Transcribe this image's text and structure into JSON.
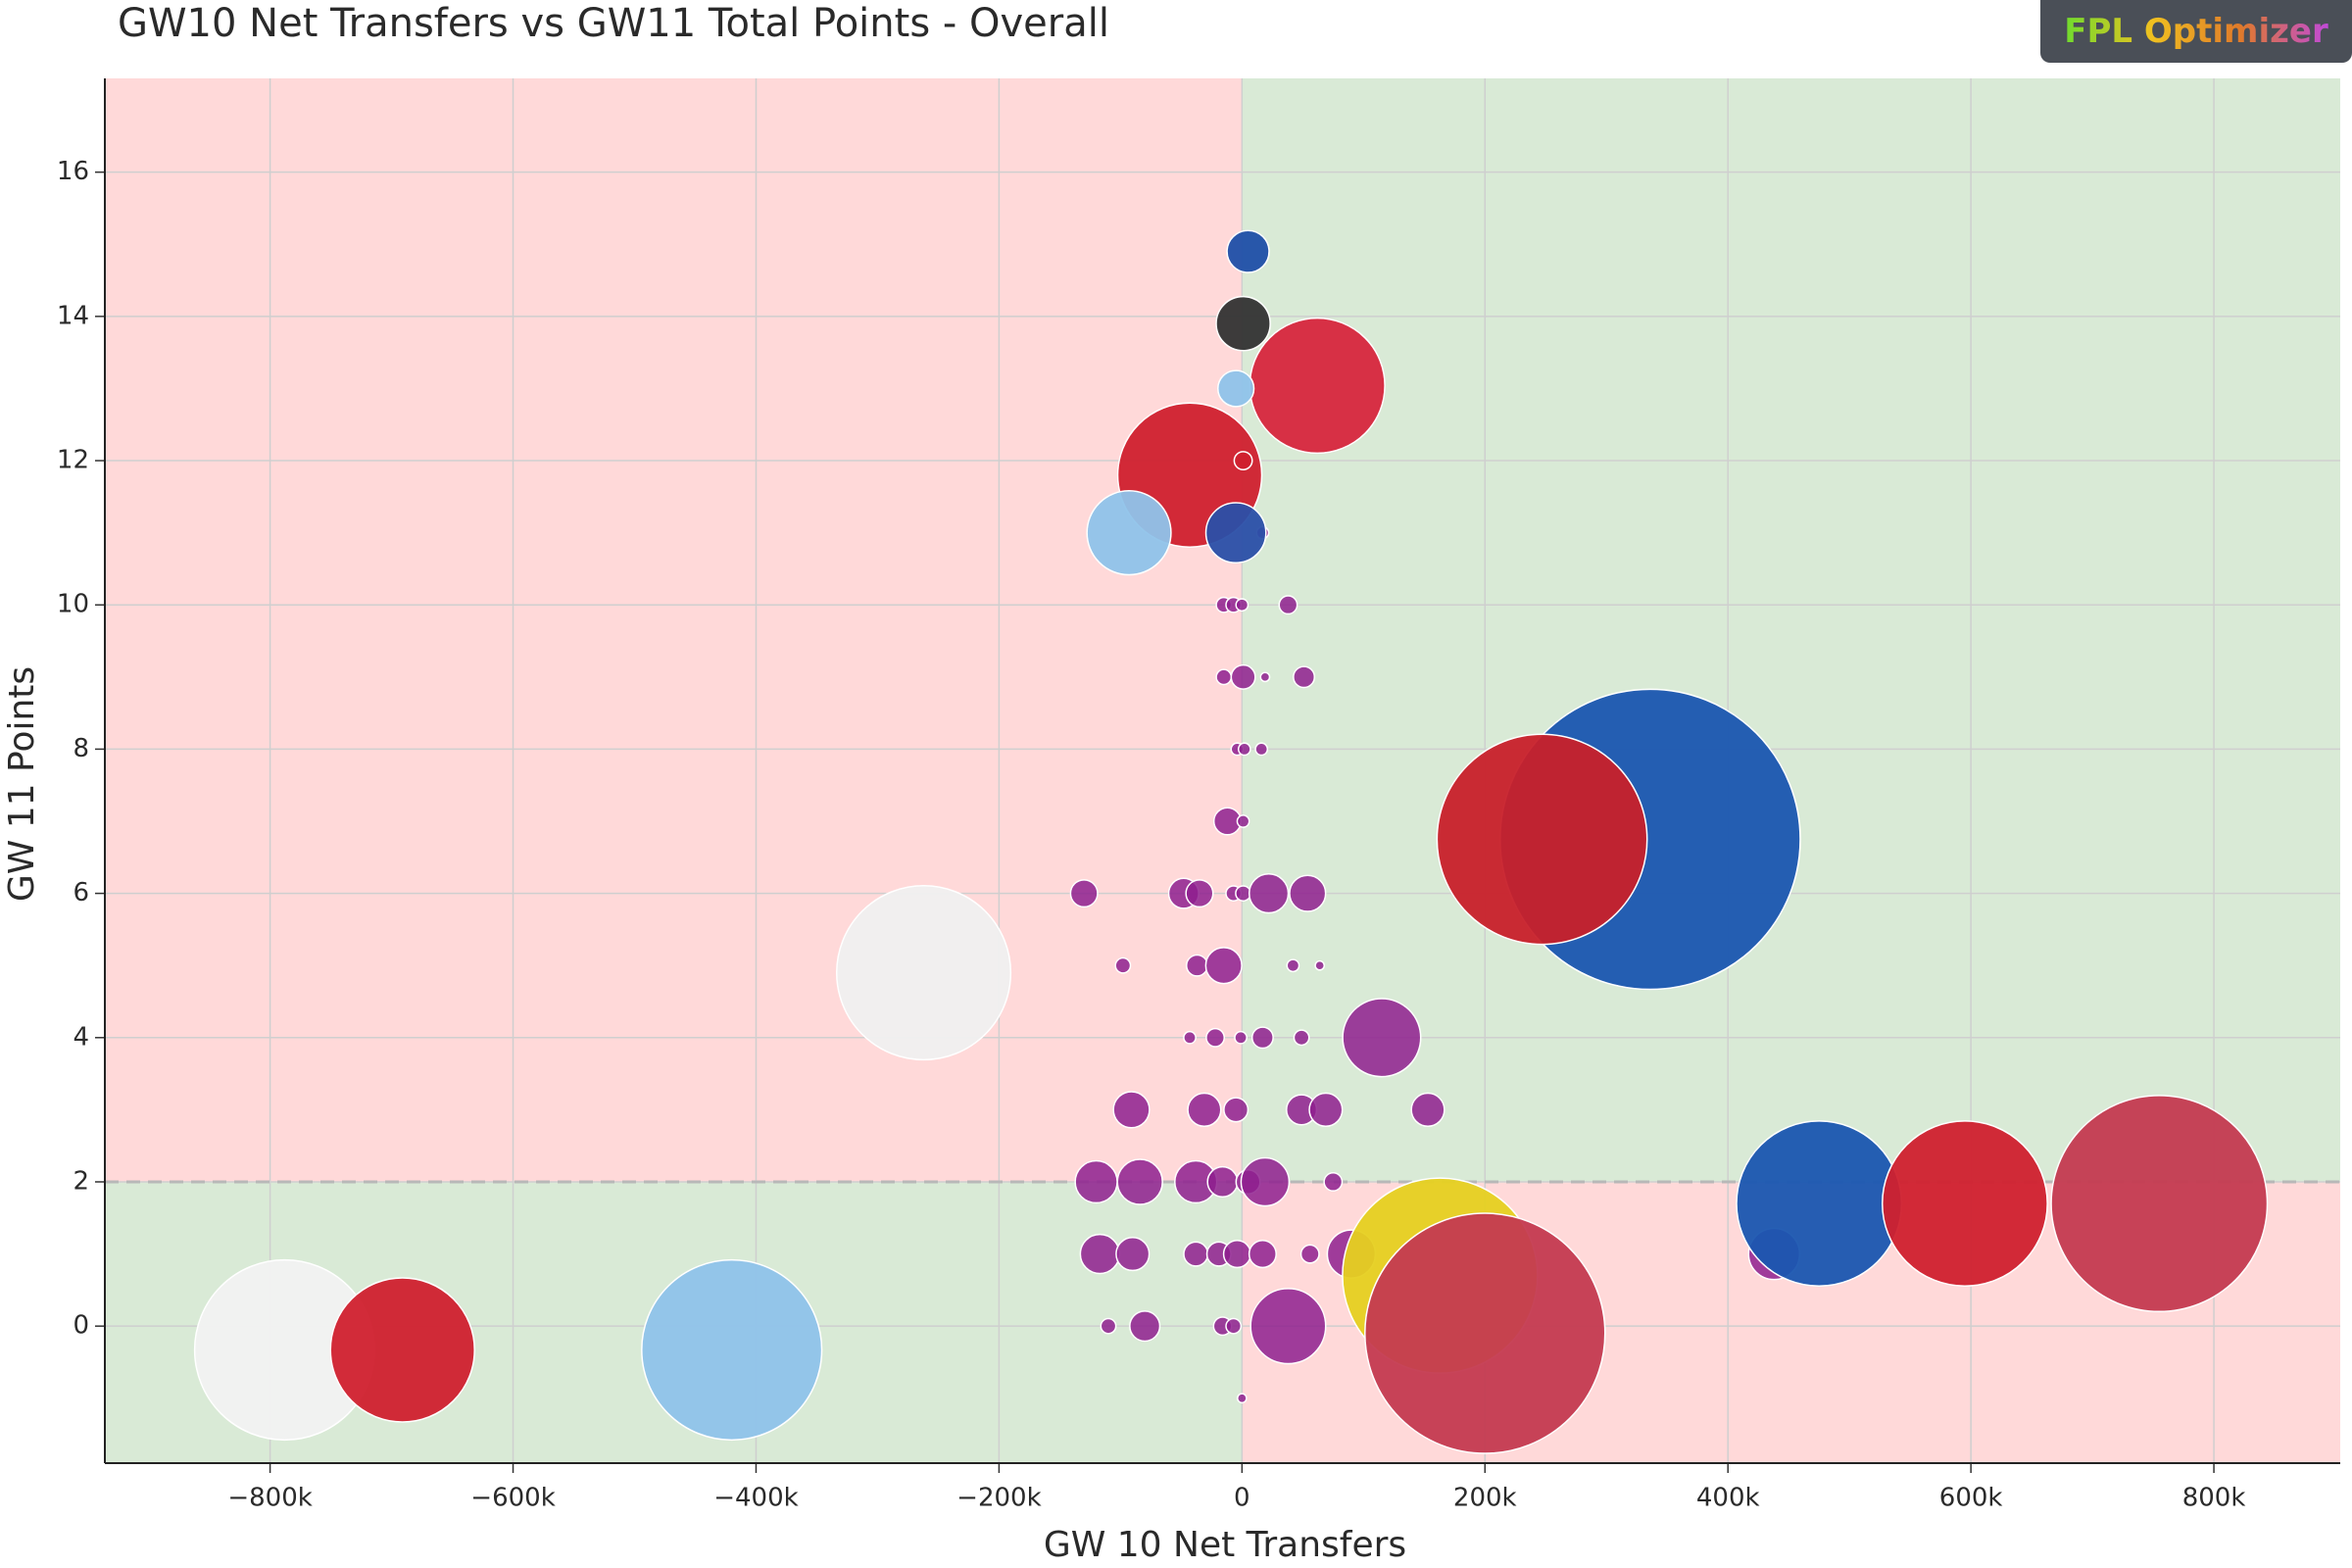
{
  "logo": "FPL Optimizer",
  "chart_data": {
    "type": "scatter",
    "title": "GW10 Net Transfers vs GW11 Total Points - Overall",
    "x_label": "GW 10 Net Transfers",
    "y_label": "GW 11 Points",
    "xlim": [
      -936000,
      904000
    ],
    "ylim": [
      -1.9,
      17.3
    ],
    "xticks": [
      {
        "value": -800000,
        "label": "−800k"
      },
      {
        "value": -600000,
        "label": "−600k"
      },
      {
        "value": -400000,
        "label": "−400k"
      },
      {
        "value": -200000,
        "label": "−200k"
      },
      0,
      {
        "value": 200000,
        "label": "200k"
      },
      {
        "value": 400000,
        "label": "400k"
      },
      {
        "value": 600000,
        "label": "600k"
      },
      {
        "value": 800000,
        "label": "800k"
      }
    ],
    "yticks": [
      0,
      2,
      4,
      6,
      8,
      10,
      12,
      14,
      16
    ],
    "grid": true,
    "split_x": 0,
    "split_y": 2,
    "series": [
      {
        "color": "#8e1f8e",
        "x": [
          17000,
          -15000,
          -7000,
          0,
          38000,
          -15000,
          1000,
          19000,
          51000,
          -4000,
          2000,
          16000,
          -12000,
          1000,
          -130000,
          -48000,
          -35000,
          -7000,
          1000,
          22000,
          54000,
          -98000,
          -37000,
          -15000,
          42000,
          64000,
          -43000,
          -22000,
          -1000,
          17000,
          49000,
          115000,
          -91000,
          -31000,
          -5000,
          49000,
          69000,
          153000,
          -120000,
          -84000,
          -38000,
          -16000,
          5000,
          19000,
          75000,
          -117000,
          -90000,
          -38000,
          -19000,
          -4000,
          17000,
          56000,
          90000,
          438000,
          -110000,
          -80000,
          -16000,
          -7000,
          38000,
          0
        ],
        "y": [
          11,
          10,
          10,
          10,
          10,
          9,
          9,
          9,
          9,
          8,
          8,
          8,
          7,
          7,
          6,
          6,
          6,
          6,
          6,
          6,
          6,
          5,
          5,
          5,
          5,
          5,
          4,
          4,
          4,
          4,
          4,
          4,
          3,
          3,
          3,
          3,
          3,
          3,
          2,
          2,
          2,
          2,
          2,
          2,
          2,
          1,
          1,
          1,
          1,
          1,
          1,
          1,
          1,
          1,
          0,
          0,
          0,
          0,
          0,
          -1
        ],
        "sizes": [
          4,
          5,
          5,
          4,
          6,
          5,
          8,
          3,
          7,
          4,
          4,
          4,
          9,
          4,
          9,
          10,
          9,
          5,
          5,
          13,
          12,
          5,
          7,
          12,
          4,
          3,
          4,
          6,
          4,
          7,
          5,
          26,
          12,
          11,
          8,
          10,
          11,
          11,
          14,
          15,
          14,
          10,
          8,
          16,
          6,
          13,
          11,
          8,
          8,
          9,
          9,
          6,
          16,
          17,
          5,
          10,
          6,
          5,
          25,
          3
        ]
      },
      {
        "colors": [
          "#1f4fa8",
          "#333333",
          "#d7263d",
          "#8fc3ea",
          "#d0202e",
          "#d0202e",
          "#8fc3ea",
          "#2a4fa8",
          "#1a56b0",
          "#c8202a",
          "#f0f0f0",
          "#1a56b0",
          "#d0202e",
          "#c43a50",
          "#e6d020",
          "#c43a50",
          "#f2f2f2",
          "#d0202e",
          "#8fc3ea"
        ],
        "x": [
          5000,
          1000,
          62000,
          -5000,
          -43000,
          1000,
          -93000,
          -5000,
          336000,
          247000,
          -262000,
          475000,
          595000,
          755000,
          163000,
          200000,
          -788000,
          -691000,
          -420000
        ],
        "y": [
          14.9,
          13.9,
          13.04,
          13,
          11.8,
          12,
          11,
          11,
          6.75,
          6.75,
          4.9,
          1.7,
          1.7,
          1.7,
          0.7,
          -0.1,
          -0.33,
          -0.33,
          -0.33
        ],
        "sizes": [
          14,
          18,
          45,
          12,
          48,
          6,
          28,
          20,
          100,
          70,
          58,
          55,
          55,
          72,
          65,
          80,
          60,
          48,
          60
        ]
      }
    ]
  }
}
